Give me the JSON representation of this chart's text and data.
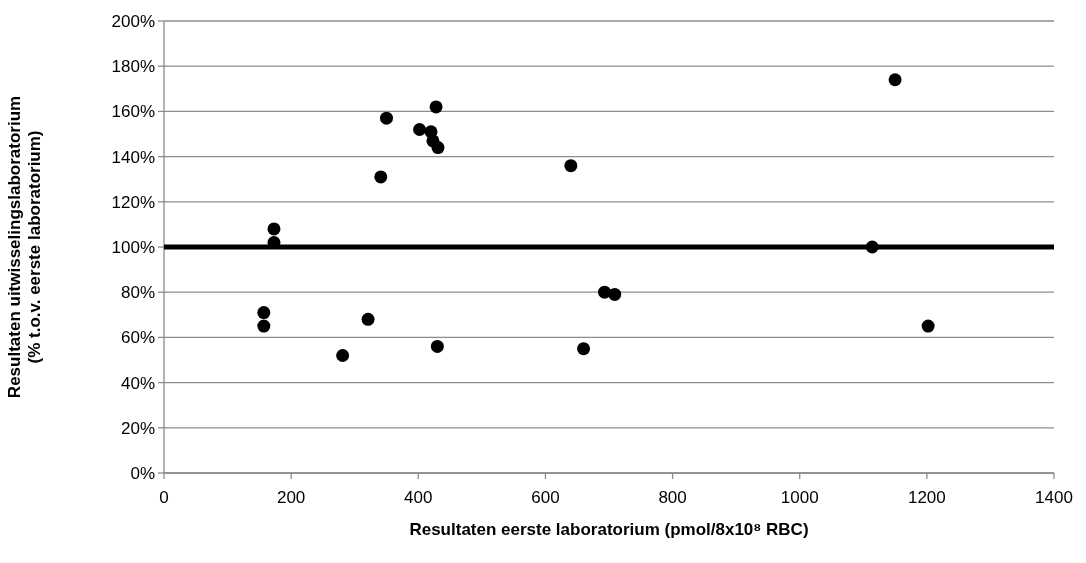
{
  "chart_data": {
    "type": "scatter",
    "xlabel": "Resultaten eerste laboratorium (pmol/8x10⁸ RBC)",
    "ylabel": "Resultaten uitwisselingslaboratorium\n(% t.o.v. eerste laboratorium)",
    "x": [
      157,
      157,
      173,
      173,
      281,
      321,
      341,
      350,
      402,
      420,
      423,
      431,
      428,
      430,
      640,
      660,
      693,
      709,
      1114,
      1150,
      1202
    ],
    "values": [
      71,
      65,
      108,
      102,
      52,
      68,
      131,
      157,
      152,
      151,
      147,
      144,
      162,
      56,
      136,
      55,
      80,
      79,
      100,
      174,
      65
    ],
    "color": "#000000",
    "marker": "circle",
    "xlim": [
      0,
      1400
    ],
    "xticks": [
      0,
      200,
      400,
      600,
      800,
      1000,
      1200,
      1400
    ],
    "ylim": [
      0,
      200
    ],
    "yticks": [
      {
        "value": 0,
        "label": "0%"
      },
      {
        "value": 20,
        "label": "20%"
      },
      {
        "value": 40,
        "label": "40%"
      },
      {
        "value": 60,
        "label": "60%"
      },
      {
        "value": 80,
        "label": "80%"
      },
      {
        "value": 100,
        "label": "100%"
      },
      {
        "value": 120,
        "label": "120%"
      },
      {
        "value": 140,
        "label": "140%"
      },
      {
        "value": 160,
        "label": "160%"
      },
      {
        "value": 180,
        "label": "180%"
      },
      {
        "value": 200,
        "label": "200%"
      }
    ],
    "grid": "y",
    "ref_lines": [
      {
        "axis": "y",
        "value": 100,
        "color": "#000000",
        "line_style": "solid"
      }
    ]
  }
}
